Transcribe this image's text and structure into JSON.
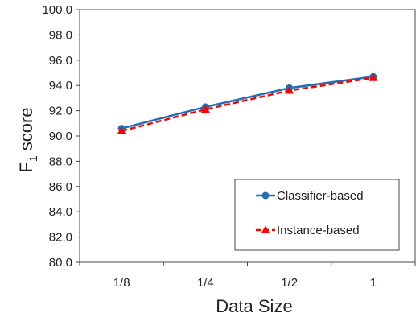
{
  "chart_data": {
    "type": "line",
    "title": "",
    "xlabel": "Data Size",
    "ylabel_main": "F",
    "ylabel_sub": "1",
    "ylabel_tail": " score",
    "categories": [
      "1/8",
      "1/4",
      "1/2",
      "1"
    ],
    "ylim": [
      80.0,
      100.0
    ],
    "yticks": [
      "80.0",
      "82.0",
      "84.0",
      "86.0",
      "88.0",
      "90.0",
      "92.0",
      "94.0",
      "96.0",
      "98.0",
      "100.0"
    ],
    "grid": false,
    "legend_position": "bottom-right inside",
    "series": [
      {
        "name": "Classifier-based",
        "values": [
          90.6,
          92.3,
          93.8,
          94.7
        ],
        "color": "#1f6fb5",
        "marker": "circle",
        "dashed": false
      },
      {
        "name": "Instance-based",
        "values": [
          90.4,
          92.1,
          93.6,
          94.6
        ],
        "color": "#ff0000",
        "marker": "triangle",
        "dashed": true
      }
    ]
  }
}
